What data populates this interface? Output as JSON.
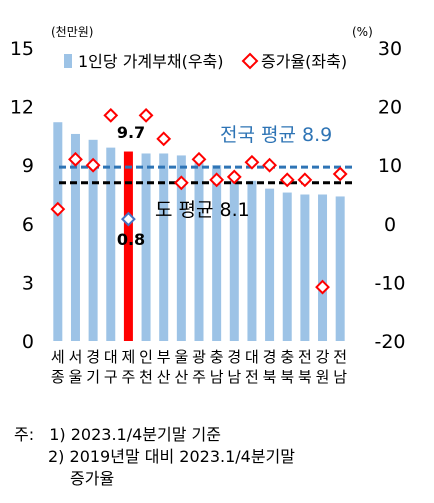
{
  "chart_data": {
    "type": "bar+scatter",
    "categories": [
      [
        "세",
        "종"
      ],
      [
        "서",
        "울"
      ],
      [
        "경",
        "기"
      ],
      [
        "대",
        "구"
      ],
      [
        "제",
        "주"
      ],
      [
        "인",
        "천"
      ],
      [
        "부",
        "산"
      ],
      [
        "울",
        "산"
      ],
      [
        "광",
        "주"
      ],
      [
        "충",
        "남"
      ],
      [
        "경",
        "남"
      ],
      [
        "대",
        "전"
      ],
      [
        "경",
        "북"
      ],
      [
        "충",
        "북"
      ],
      [
        "전",
        "북"
      ],
      [
        "강",
        "원"
      ],
      [
        "전",
        "남"
      ]
    ],
    "series": [
      {
        "name": "1인당 가계부채(우축)",
        "kind": "bar",
        "axis": "left",
        "color": "#9dc3e6",
        "highlight_color": "#ff0000",
        "highlight_index": 4,
        "values": [
          11.2,
          10.6,
          10.3,
          9.9,
          9.7,
          9.6,
          9.6,
          9.5,
          9.1,
          9.0,
          8.5,
          8.2,
          7.8,
          7.6,
          7.5,
          7.5,
          7.4
        ]
      },
      {
        "name": "증가율(좌축)",
        "kind": "scatter",
        "marker": "diamond",
        "axis": "right",
        "color": "#ff0000",
        "highlight_color": "#4472c4",
        "highlight_index": 4,
        "values": [
          2.5,
          11.0,
          10.0,
          18.5,
          0.8,
          18.5,
          14.5,
          7.0,
          11.0,
          7.5,
          8.0,
          10.5,
          10.0,
          7.5,
          7.5,
          -10.8,
          8.5
        ]
      }
    ],
    "left_axis": {
      "unit": "(천만원)",
      "min": 0,
      "max": 15,
      "ticks": [
        0,
        3,
        6,
        9,
        12,
        15
      ]
    },
    "right_axis": {
      "unit": "(%)",
      "min": -20,
      "max": 30,
      "ticks": [
        -20,
        -10,
        0,
        10,
        20,
        30
      ]
    },
    "reference_lines": [
      {
        "label": "전국 평균 8.9",
        "value": 8.9,
        "axis": "left",
        "color": "#2e74b5",
        "style": "dashed"
      },
      {
        "label": "도 평균 8.1",
        "value": 8.1,
        "axis": "left",
        "color": "#000000",
        "style": "dashed"
      }
    ],
    "annotations": {
      "bar_highlight_label": "9.7",
      "point_highlight_label": "0.8"
    },
    "legend_position": "top",
    "grid": false
  },
  "notes": {
    "prefix": "주:",
    "line1": "1) 2023.1/4분기말 기준",
    "line2": "2) 2019년말 대비 2023.1/4분기말",
    "line3": "증가율"
  }
}
